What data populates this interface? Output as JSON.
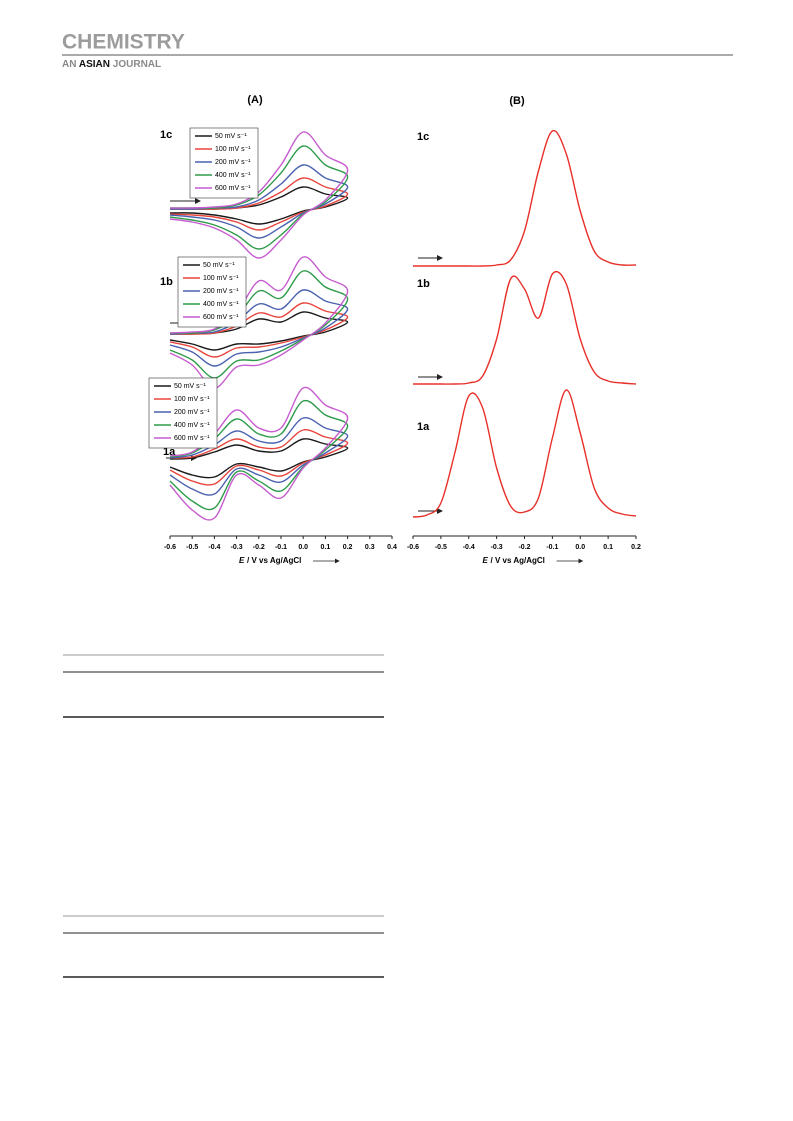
{
  "header": {
    "title": "CHEMISTRY",
    "subtitle": [
      "AN",
      "ASIAN",
      "JOURNAL"
    ]
  },
  "chart_data": [
    {
      "type": "line",
      "title": "(A)",
      "x_label_symbol": "E",
      "x_label": "/ V vs Ag/AgCl",
      "xlim": [
        -0.6,
        0.4
      ],
      "xticks": [
        -0.6,
        -0.5,
        -0.4,
        -0.3,
        -0.2,
        -0.1,
        {
          "value": 0,
          "label": "0.0"
        },
        0.1,
        0.2,
        0.3,
        0.4
      ],
      "panels": [
        {
          "label": "1c",
          "x": [
            -0.6,
            -0.5,
            -0.4,
            -0.3,
            -0.2,
            -0.1,
            0,
            0.1,
            0.2,
            0.1,
            0,
            -0.1,
            -0.2,
            -0.3,
            -0.4,
            -0.5,
            -0.6
          ],
          "series": [
            {
              "name": "50 mV s⁻¹",
              "color": "#1a1a1a",
              "values": [
                1,
                1,
                1,
                2,
                5,
                13,
                23,
                16,
                12,
                3,
                -1,
                -9,
                -14,
                -9,
                -5,
                -3,
                -3
              ]
            },
            {
              "name": "100 mV s⁻¹",
              "color": "#e8453c",
              "values": [
                1,
                1,
                1,
                2,
                7,
                18,
                32,
                23,
                16,
                4,
                -2,
                -12,
                -20,
                -12,
                -7,
                -5,
                -4
              ]
            },
            {
              "name": "200 mV s⁻¹",
              "color": "#4a62b0",
              "values": [
                1,
                1,
                2,
                3,
                10,
                26,
                45,
                32,
                23,
                6,
                -3,
                -17,
                -28,
                -17,
                -10,
                -7,
                -5
              ]
            },
            {
              "name": "400 mV s⁻¹",
              "color": "#2e9b4a",
              "values": [
                2,
                2,
                2,
                5,
                15,
                37,
                64,
                45,
                33,
                8,
                -4,
                -25,
                -39,
                -25,
                -15,
                -10,
                -7
              ]
            },
            {
              "name": "600 mV s⁻¹",
              "color": "#c65ccf",
              "values": [
                2,
                2,
                3,
                6,
                18,
                45,
                78,
                55,
                40,
                10,
                -5,
                -30,
                -48,
                -30,
                -18,
                -12,
                -9
              ]
            }
          ]
        },
        {
          "label": "1b",
          "x": [
            -0.6,
            -0.5,
            -0.4,
            -0.3,
            -0.2,
            -0.1,
            0,
            0.1,
            0.2,
            0.1,
            0,
            -0.1,
            -0.2,
            -0.3,
            -0.4,
            -0.5,
            -0.6
          ],
          "series": [
            {
              "name": "50 mV s⁻¹",
              "color": "#1a1a1a",
              "values": [
                1,
                1,
                2,
                6,
                16,
                13,
                23,
                17,
                13,
                3,
                -1,
                -6,
                -9,
                -9,
                -15,
                -9,
                -5
              ]
            },
            {
              "name": "100 mV s⁻¹",
              "color": "#e8453c",
              "values": [
                1,
                1,
                2,
                9,
                22,
                18,
                32,
                24,
                18,
                5,
                -2,
                -8,
                -12,
                -13,
                -22,
                -12,
                -7
              ]
            },
            {
              "name": "200 mV s⁻¹",
              "color": "#4a62b0",
              "values": [
                1,
                2,
                3,
                13,
                31,
                26,
                45,
                34,
                26,
                7,
                -3,
                -12,
                -17,
                -19,
                -31,
                -17,
                -10
              ]
            },
            {
              "name": "400 mV s⁻¹",
              "color": "#2e9b4a",
              "values": [
                2,
                2,
                5,
                18,
                44,
                37,
                64,
                48,
                36,
                10,
                -4,
                -16,
                -25,
                -26,
                -43,
                -25,
                -15
              ]
            },
            {
              "name": "600 mV s⁻¹",
              "color": "#c65ccf",
              "values": [
                2,
                3,
                6,
                22,
                54,
                45,
                78,
                58,
                44,
                12,
                -5,
                -20,
                -30,
                -32,
                -53,
                -30,
                -18
              ]
            }
          ]
        },
        {
          "label": "1a",
          "x": [
            -0.6,
            -0.5,
            -0.4,
            -0.3,
            -0.2,
            -0.1,
            0,
            0.1,
            0.2,
            0.1,
            0,
            -0.1,
            -0.2,
            -0.3,
            -0.4,
            -0.5,
            -0.6
          ],
          "series": [
            {
              "name": "50 mV s⁻¹",
              "color": "#1a1a1a",
              "values": [
                1,
                2,
                8,
                15,
                9,
                9,
                21,
                16,
                12,
                3,
                -2,
                -11,
                -7,
                -4,
                -17,
                -15,
                -7
              ]
            },
            {
              "name": "100 mV s⁻¹",
              "color": "#e8453c",
              "values": [
                2,
                3,
                11,
                21,
                13,
                13,
                30,
                23,
                17,
                5,
                -3,
                -16,
                -10,
                -6,
                -24,
                -21,
                -10
              ]
            },
            {
              "name": "200 mV s⁻¹",
              "color": "#4a62b0",
              "values": [
                2,
                5,
                15,
                29,
                19,
                19,
                42,
                32,
                24,
                7,
                -5,
                -22,
                -15,
                -9,
                -34,
                -29,
                -15
              ]
            },
            {
              "name": "400 mV s⁻¹",
              "color": "#2e9b4a",
              "values": [
                3,
                7,
                21,
                41,
                26,
                26,
                59,
                45,
                34,
                10,
                -7,
                -31,
                -21,
                -12,
                -48,
                -41,
                -21
              ]
            },
            {
              "name": "600 mV s⁻¹",
              "color": "#c65ccf",
              "values": [
                4,
                8,
                26,
                50,
                32,
                32,
                72,
                55,
                42,
                12,
                -8,
                -38,
                -25,
                -15,
                -58,
                -50,
                -25
              ]
            }
          ]
        }
      ]
    },
    {
      "type": "line",
      "title": "(B)",
      "x_label_symbol": "E",
      "x_label": "/ V vs Ag/AgCl",
      "xlim": [
        -0.6,
        0.2
      ],
      "xticks": [
        -0.6,
        -0.5,
        -0.4,
        -0.3,
        -0.2,
        -0.1,
        {
          "value": 0,
          "label": "0.0"
        },
        0.1,
        0.2
      ],
      "panels": [
        {
          "label": "1c",
          "x": [
            -0.6,
            -0.55,
            -0.5,
            -0.45,
            -0.4,
            -0.35,
            -0.3,
            -0.25,
            -0.2,
            -0.15,
            -0.1,
            -0.05,
            0,
            0.05,
            0.1,
            0.15,
            0.2
          ],
          "series": [
            {
              "color": "#e8302a",
              "values": [
                0,
                0,
                0,
                0,
                0,
                0,
                1,
                6,
                35,
                95,
                135,
                112,
                55,
                15,
                4,
                1,
                1
              ]
            }
          ]
        },
        {
          "label": "1b",
          "x": [
            -0.6,
            -0.55,
            -0.5,
            -0.45,
            -0.4,
            -0.35,
            -0.3,
            -0.25,
            -0.2,
            -0.15,
            -0.1,
            -0.05,
            0,
            0.05,
            0.1,
            0.15,
            0.2
          ],
          "series": [
            {
              "color": "#e8302a",
              "values": [
                0,
                0,
                0,
                0,
                1,
                8,
                45,
                105,
                95,
                66,
                110,
                100,
                45,
                12,
                3,
                1,
                0
              ]
            }
          ]
        },
        {
          "label": "1a",
          "x": [
            -0.6,
            -0.55,
            -0.5,
            -0.45,
            -0.4,
            -0.35,
            -0.3,
            -0.25,
            -0.2,
            -0.15,
            -0.1,
            -0.05,
            0,
            0.05,
            0.1,
            0.15,
            0.2
          ],
          "series": [
            {
              "color": "#e8302a",
              "values": [
                1,
                3,
                15,
                65,
                122,
                110,
                50,
                12,
                6,
                20,
                80,
                128,
                85,
                30,
                10,
                4,
                2
              ]
            }
          ]
        }
      ]
    }
  ]
}
